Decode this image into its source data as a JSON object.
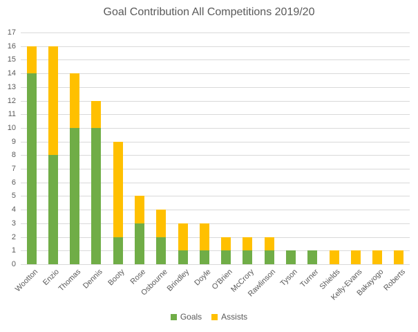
{
  "chart_data": {
    "type": "bar",
    "stacked": true,
    "title": "Goal Contribution All Competitions 2019/20",
    "categories": [
      "Wootton",
      "Enzio",
      "Thomas",
      "Dennis",
      "Booty",
      "Rose",
      "Osbourne",
      "Brindley",
      "Doyle",
      "O'Brien",
      "McCrory",
      "Rawlinson",
      "Tyson",
      "Turner",
      "Shields",
      "Kelly-Evans",
      "Bakayogo",
      "Roberts"
    ],
    "series": [
      {
        "name": "Goals",
        "color": "#70AD47",
        "values": [
          14,
          8,
          10,
          10,
          2,
          3,
          2,
          1,
          1,
          1,
          1,
          1,
          1,
          1,
          0,
          0,
          0,
          0
        ]
      },
      {
        "name": "Assists",
        "color": "#FFC000",
        "values": [
          2,
          8,
          4,
          2,
          7,
          2,
          2,
          2,
          2,
          1,
          1,
          1,
          0,
          0,
          1,
          1,
          1,
          1
        ]
      }
    ],
    "xlabel": "",
    "ylabel": "",
    "ylim": [
      0,
      17
    ],
    "ytick_step": 1,
    "grid": true,
    "legend_position": "bottom"
  },
  "styles": {
    "text_color": "#595959",
    "gridline_color": "#D9D9D9",
    "background": "#FFFFFF"
  }
}
